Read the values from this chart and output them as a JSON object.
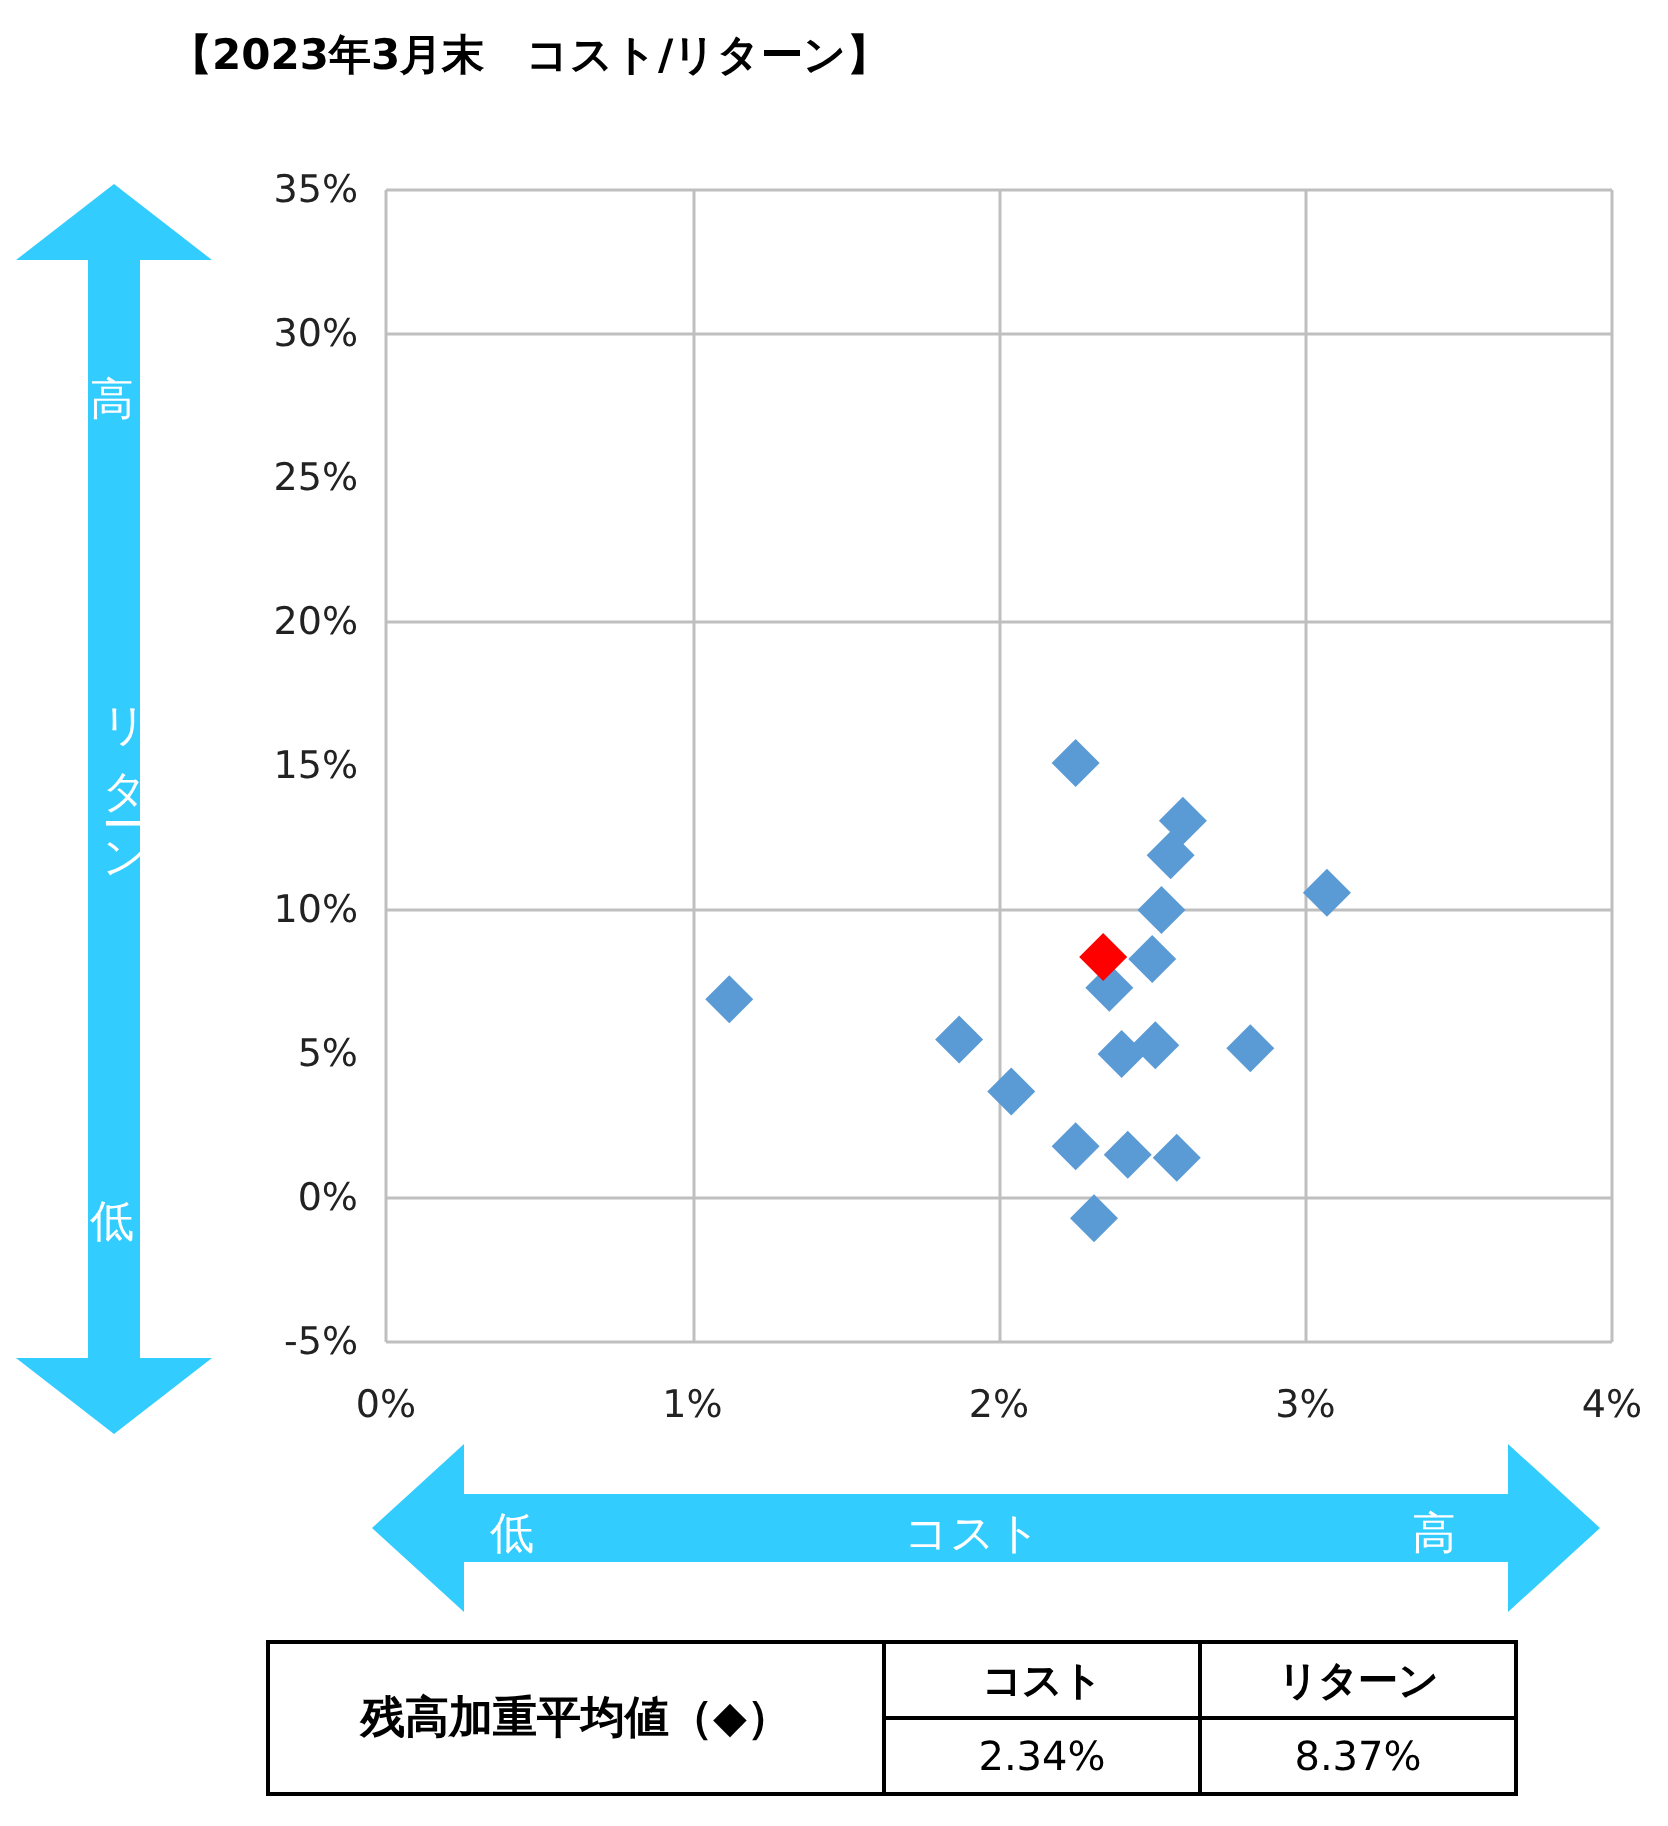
{
  "chart_data": {
    "type": "scatter",
    "title": "【2023年3月末　コスト/リターン】",
    "xlabel": "コスト",
    "ylabel": "リターン",
    "xlim": [
      0,
      4
    ],
    "xticks": [
      {
        "value": 0,
        "label": "0%"
      },
      {
        "value": 1,
        "label": "1%"
      },
      {
        "value": 2,
        "label": "2%"
      },
      {
        "value": 3,
        "label": "3%"
      },
      {
        "value": 4,
        "label": "4%"
      }
    ],
    "ylim": [
      -5,
      35
    ],
    "yticks": [
      {
        "value": -5,
        "label": "-5%"
      },
      {
        "value": 0,
        "label": "0%"
      },
      {
        "value": 5,
        "label": "5%"
      },
      {
        "value": 10,
        "label": "10%"
      },
      {
        "value": 15,
        "label": "15%"
      },
      {
        "value": 20,
        "label": "20%"
      },
      {
        "value": 25,
        "label": "25%"
      },
      {
        "value": 30,
        "label": "30%"
      },
      {
        "value": 35,
        "label": "35%"
      }
    ],
    "grid": true,
    "marker": "diamond",
    "series": [
      {
        "color": "#5b9bd5",
        "x": [
          2.25,
          2.6,
          2.56,
          3.07,
          2.53,
          2.5,
          2.36,
          1.12,
          1.87,
          2.4,
          2.51,
          2.82,
          2.04,
          2.25,
          2.42,
          2.58,
          2.31
        ],
        "values": [
          15.1,
          13.1,
          11.9,
          10.6,
          10.0,
          8.3,
          7.3,
          6.9,
          5.5,
          5.0,
          5.3,
          5.2,
          3.7,
          1.8,
          1.5,
          1.4,
          -0.7
        ]
      },
      {
        "color": "#ff0000",
        "x": [
          2.34
        ],
        "values": [
          8.37
        ]
      }
    ],
    "annotations": [
      "高",
      "低",
      "低",
      "高",
      "残高加重平均値（◆）",
      "コスト",
      "リターン",
      "2.34%",
      "8.37%"
    ]
  }
}
